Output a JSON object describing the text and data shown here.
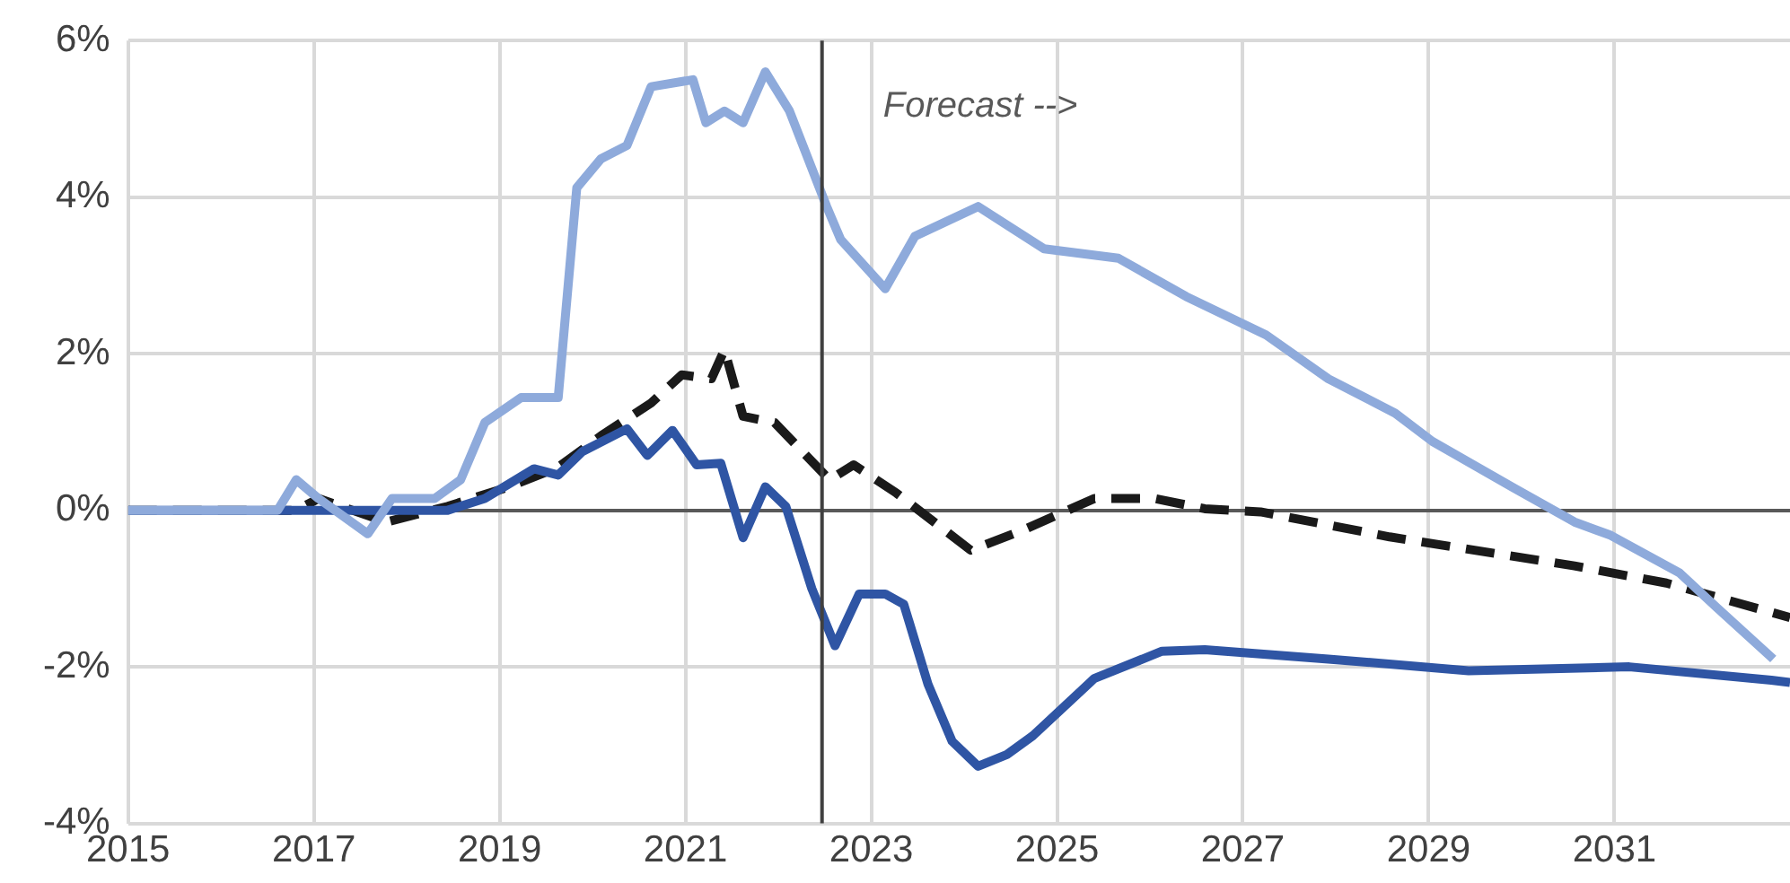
{
  "chart_data": {
    "type": "line",
    "xlim": [
      2015,
      2032.89
    ],
    "xticks": [
      2015,
      2017,
      2019,
      2021,
      2023,
      2025,
      2027,
      2029,
      2031
    ],
    "ylim": [
      -4,
      6
    ],
    "yticks": [
      {
        "value": -4,
        "label": "-4%"
      },
      {
        "value": -2,
        "label": "-2%"
      },
      {
        "value": 0,
        "label": "0%"
      },
      {
        "value": 2,
        "label": "2%"
      },
      {
        "value": 4,
        "label": "4%"
      },
      {
        "value": 6,
        "label": "6%"
      }
    ],
    "grid": true,
    "legend": false,
    "marker": "none",
    "ref_lines": [
      {
        "axis": "x",
        "value": 2022.47,
        "label": "Forecast -->",
        "color": "#404040",
        "line_style": "solid"
      }
    ],
    "series": [
      {
        "color": "#8eaadb",
        "line_style": "solid",
        "x": [
          2015,
          2016.61,
          2016.81,
          2017.05,
          2017.58,
          2017.84,
          2018.3,
          2018.58,
          2018.84,
          2019.23,
          2019.63,
          2019.83,
          2020.09,
          2020.37,
          2020.63,
          2021.08,
          2021.22,
          2021.42,
          2021.62,
          2021.86,
          2022.12,
          2022.52,
          2022.67,
          2023.15,
          2023.47,
          2024.15,
          2024.86,
          2025.66,
          2026.39,
          2027.25,
          2027.92,
          2028.64,
          2029.04,
          2029.91,
          2030.57,
          2030.96,
          2031.7,
          2032.1,
          2032.71
        ],
        "values": [
          0,
          0,
          0.39,
          0.15,
          -0.3,
          0.15,
          0.15,
          0.39,
          1.12,
          1.44,
          1.44,
          4.12,
          4.49,
          4.66,
          5.41,
          5.5,
          4.95,
          5.1,
          4.95,
          5.6,
          5.1,
          3.88,
          3.46,
          2.83,
          3.5,
          3.88,
          3.34,
          3.22,
          2.73,
          2.24,
          1.68,
          1.24,
          0.88,
          0.29,
          -0.15,
          -0.32,
          -0.8,
          -1.24,
          -1.9
        ]
      },
      {
        "color": "#2f55a4",
        "line_style": "solid",
        "x": [
          2015,
          2018.44,
          2018.84,
          2019.37,
          2019.63,
          2019.89,
          2020.37,
          2020.59,
          2020.86,
          2021.12,
          2021.38,
          2021.62,
          2021.86,
          2022.08,
          2022.36,
          2022.61,
          2022.87,
          2023.15,
          2023.35,
          2023.61,
          2023.87,
          2024.15,
          2024.46,
          2024.74,
          2025.4,
          2026.13,
          2026.59,
          2027.92,
          2029.43,
          2031.16,
          2032.69,
          2032.89
        ],
        "values": [
          0,
          0,
          0.15,
          0.53,
          0.45,
          0.75,
          1.04,
          0.7,
          1.02,
          0.58,
          0.6,
          -0.35,
          0.3,
          0.05,
          -1.0,
          -1.73,
          -1.07,
          -1.07,
          -1.2,
          -2.22,
          -2.95,
          -3.27,
          -3.12,
          -2.88,
          -2.15,
          -1.8,
          -1.78,
          -1.9,
          -2.05,
          -2.0,
          -2.17,
          -2.2
        ]
      },
      {
        "color": "#1a1a1a",
        "line_style": "dashed",
        "x": [
          2015,
          2016.81,
          2017.05,
          2017.78,
          2018.44,
          2019.1,
          2019.63,
          2020.09,
          2020.63,
          2020.96,
          2021.28,
          2021.42,
          2021.62,
          2021.96,
          2022.55,
          2022.81,
          2023.27,
          2024.07,
          2024.6,
          2025.4,
          2026.05,
          2026.59,
          2027.19,
          2028.58,
          2030.57,
          2031.56,
          2032.89
        ],
        "values": [
          0,
          0,
          0.15,
          -0.15,
          0.05,
          0.3,
          0.55,
          0.95,
          1.37,
          1.73,
          1.68,
          2.05,
          1.2,
          1.12,
          0.39,
          0.58,
          0.22,
          -0.51,
          -0.27,
          0.15,
          0.15,
          0.02,
          -0.02,
          -0.34,
          -0.71,
          -0.93,
          -1.37
        ]
      }
    ]
  }
}
